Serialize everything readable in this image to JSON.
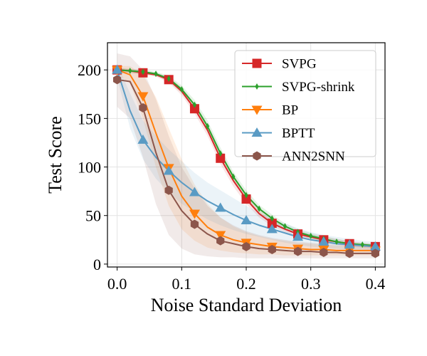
{
  "chart_data": {
    "type": "line",
    "title": "",
    "xlabel": "Noise Standard Deviation",
    "ylabel": "Test Score",
    "xlim": [
      -0.015,
      0.415
    ],
    "ylim": [
      -3,
      228
    ],
    "xticks": [
      0.0,
      0.1,
      0.2,
      0.3,
      0.4
    ],
    "xtick_labels": [
      "0.0",
      "0.1",
      "0.2",
      "0.3",
      "0.4"
    ],
    "yticks": [
      0,
      50,
      100,
      150,
      200
    ],
    "ytick_labels": [
      "0",
      "50",
      "100",
      "150",
      "200"
    ],
    "grid": true,
    "legend_position": "top-right",
    "series": [
      {
        "name": "SVPG",
        "color": "#d62728",
        "marker": "square",
        "band": true,
        "x": [
          0,
          0.02,
          0.04,
          0.06,
          0.08,
          0.1,
          0.12,
          0.14,
          0.16,
          0.18,
          0.2,
          0.22,
          0.24,
          0.26,
          0.28,
          0.3,
          0.32,
          0.34,
          0.36,
          0.38,
          0.4
        ],
        "y": [
          200,
          199,
          197,
          195,
          190,
          178,
          160,
          138,
          109,
          86,
          67,
          52,
          42,
          36,
          31,
          28,
          25,
          23,
          21,
          19,
          18
        ],
        "lower": [
          198,
          197,
          195,
          193,
          187,
          174,
          155,
          132,
          103,
          80,
          62,
          48,
          39,
          33,
          28,
          25,
          22,
          20,
          18,
          17,
          16
        ],
        "upper": [
          202,
          201,
          199,
          197,
          193,
          182,
          165,
          144,
          115,
          92,
          72,
          56,
          45,
          39,
          34,
          31,
          28,
          26,
          24,
          22,
          20
        ],
        "marker_idx": [
          0,
          2,
          4,
          6,
          8,
          10,
          12,
          14,
          16,
          18,
          20
        ]
      },
      {
        "name": "SVPG-shrink",
        "color": "#2ca02c",
        "marker": "diamond",
        "band": true,
        "x": [
          0,
          0.02,
          0.04,
          0.06,
          0.08,
          0.1,
          0.12,
          0.14,
          0.16,
          0.18,
          0.2,
          0.22,
          0.24,
          0.26,
          0.28,
          0.3,
          0.32,
          0.34,
          0.36,
          0.38,
          0.4
        ],
        "y": [
          200,
          199,
          198,
          196,
          191,
          180,
          164,
          142,
          114,
          90,
          71,
          57,
          47,
          39,
          33,
          29,
          26,
          23,
          21,
          20,
          19
        ],
        "lower": [
          198,
          197,
          196,
          194,
          188,
          176,
          159,
          136,
          108,
          85,
          66,
          53,
          43,
          36,
          30,
          26,
          23,
          20,
          19,
          18,
          17
        ],
        "upper": [
          202,
          201,
          200,
          198,
          194,
          184,
          169,
          148,
          120,
          95,
          76,
          61,
          51,
          42,
          36,
          32,
          29,
          26,
          23,
          22,
          21
        ],
        "marker_idx": [
          0,
          1,
          2,
          3,
          4,
          5,
          6,
          7,
          8,
          9,
          10,
          11,
          12,
          13,
          14,
          15,
          16,
          17,
          18,
          19,
          20
        ]
      },
      {
        "name": "BP",
        "color": "#ff7f0e",
        "marker": "triangle-down",
        "band": true,
        "x": [
          0,
          0.02,
          0.04,
          0.06,
          0.08,
          0.1,
          0.12,
          0.14,
          0.16,
          0.18,
          0.2,
          0.22,
          0.24,
          0.26,
          0.28,
          0.3,
          0.32,
          0.34,
          0.36,
          0.38,
          0.4
        ],
        "y": [
          200,
          195,
          173,
          135,
          99,
          70,
          52,
          38,
          30,
          25,
          22,
          20,
          18,
          17,
          16,
          15,
          15,
          14,
          14,
          14,
          14
        ],
        "lower": [
          196,
          186,
          150,
          100,
          60,
          36,
          24,
          17,
          14,
          12,
          11,
          10,
          10,
          9,
          9,
          9,
          9,
          9,
          9,
          9,
          9
        ],
        "upper": [
          204,
          204,
          195,
          172,
          140,
          108,
          82,
          62,
          48,
          39,
          33,
          29,
          26,
          24,
          22,
          21,
          20,
          19,
          19,
          18,
          18
        ],
        "marker_idx": [
          0,
          2,
          4,
          6,
          8,
          10,
          12,
          14,
          16,
          18,
          20
        ]
      },
      {
        "name": "BPTT",
        "color": "#5a9bc4",
        "marker": "triangle-up",
        "band": true,
        "x": [
          0,
          0.02,
          0.04,
          0.06,
          0.08,
          0.1,
          0.12,
          0.14,
          0.16,
          0.18,
          0.2,
          0.22,
          0.24,
          0.26,
          0.28,
          0.3,
          0.32,
          0.34,
          0.36,
          0.38,
          0.4
        ],
        "y": [
          200,
          158,
          128,
          110,
          96,
          84,
          74,
          65,
          58,
          51,
          45,
          40,
          36,
          32,
          28,
          25,
          23,
          21,
          20,
          19,
          18
        ],
        "lower": [
          192,
          140,
          108,
          88,
          74,
          62,
          54,
          46,
          40,
          35,
          31,
          28,
          25,
          22,
          20,
          18,
          17,
          16,
          15,
          15,
          14
        ],
        "upper": [
          206,
          176,
          148,
          132,
          118,
          106,
          94,
          84,
          76,
          68,
          60,
          53,
          47,
          42,
          37,
          33,
          30,
          28,
          26,
          24,
          23
        ],
        "marker_idx": [
          0,
          2,
          4,
          6,
          8,
          10,
          12,
          14,
          16,
          18,
          20
        ]
      },
      {
        "name": "ANN2SNN",
        "color": "#8c564b",
        "marker": "hexagon",
        "band": true,
        "x": [
          0,
          0.02,
          0.04,
          0.06,
          0.08,
          0.1,
          0.12,
          0.14,
          0.16,
          0.18,
          0.2,
          0.22,
          0.24,
          0.26,
          0.28,
          0.3,
          0.32,
          0.34,
          0.36,
          0.38,
          0.4
        ],
        "y": [
          190,
          188,
          161,
          115,
          76,
          55,
          41,
          31,
          24,
          21,
          18,
          16,
          15,
          14,
          13,
          13,
          12,
          12,
          11,
          11,
          11
        ],
        "lower": [
          162,
          150,
          110,
          62,
          30,
          16,
          10,
          8,
          7,
          7,
          6,
          6,
          6,
          6,
          6,
          6,
          6,
          6,
          6,
          6,
          6
        ],
        "upper": [
          217,
          214,
          200,
          170,
          132,
          100,
          78,
          60,
          48,
          40,
          34,
          30,
          27,
          25,
          23,
          22,
          21,
          20,
          19,
          19,
          18
        ],
        "marker_idx": [
          0,
          2,
          4,
          6,
          8,
          10,
          12,
          14,
          16,
          18,
          20
        ]
      }
    ]
  }
}
